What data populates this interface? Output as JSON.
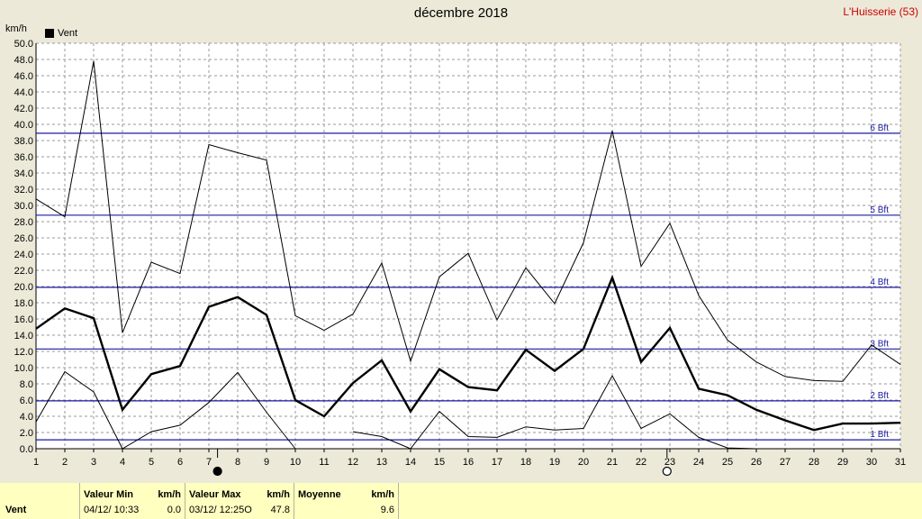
{
  "title": "décembre 2018",
  "location": "L'Huisserie (53)",
  "unit_label": "km/h",
  "legend": {
    "label": "Vent",
    "color": "#000000"
  },
  "chart_data": {
    "type": "line",
    "title": "décembre 2018",
    "ylabel": "km/h",
    "xlabel": "",
    "ylim": [
      0,
      50
    ],
    "y_tick_step": 2,
    "x": [
      1,
      2,
      3,
      4,
      5,
      6,
      7,
      8,
      9,
      10,
      11,
      12,
      13,
      14,
      15,
      16,
      17,
      18,
      19,
      20,
      21,
      22,
      23,
      24,
      25,
      26,
      27,
      28,
      29,
      30,
      31
    ],
    "grid": true,
    "legend_position": "top-left",
    "series": [
      {
        "name": "Vent",
        "role": "max",
        "values": [
          30.8,
          28.6,
          47.8,
          14.3,
          23.0,
          21.6,
          37.5,
          36.5,
          35.6,
          16.4,
          14.6,
          16.6,
          22.9,
          10.8,
          21.2,
          24.1,
          15.9,
          22.3,
          17.9,
          25.4,
          39.2,
          22.5,
          27.8,
          18.9,
          13.4,
          10.7,
          8.9,
          8.4,
          8.3,
          12.8,
          10.4
        ]
      },
      {
        "name": "Vent",
        "role": "mean",
        "values": [
          14.8,
          17.3,
          16.1,
          4.8,
          9.2,
          10.2,
          17.5,
          18.7,
          16.5,
          6.0,
          4.0,
          8.1,
          10.9,
          4.6,
          9.8,
          7.6,
          7.2,
          12.2,
          9.6,
          12.3,
          21.1,
          10.7,
          14.9,
          7.4,
          6.6,
          4.8,
          3.5,
          2.3,
          3.1,
          3.1,
          3.2
        ]
      },
      {
        "name": "Vent",
        "role": "min",
        "values": [
          3.3,
          9.5,
          7.0,
          0.0,
          2.1,
          2.9,
          5.7,
          9.4,
          4.5,
          0.0,
          null,
          2.1,
          1.5,
          0.0,
          4.6,
          1.5,
          1.4,
          2.7,
          2.3,
          2.5,
          9.0,
          2.5,
          4.3,
          1.4,
          0.1,
          0.0,
          null,
          null,
          null,
          null,
          null
        ]
      }
    ],
    "beaufort_lines": [
      {
        "label": "1 Bft",
        "value": 1.1
      },
      {
        "label": "2 Bft",
        "value": 5.9
      },
      {
        "label": "3 Bft",
        "value": 12.3
      },
      {
        "label": "4 Bft",
        "value": 19.9
      },
      {
        "label": "5 Bft",
        "value": 28.8
      },
      {
        "label": "6 Bft",
        "value": 38.9
      }
    ],
    "moon_phases": [
      {
        "day": 7.3,
        "phase": "new"
      },
      {
        "day": 22.9,
        "phase": "full"
      }
    ]
  },
  "footer": {
    "series": "Vent",
    "min": {
      "header": "Valeur Min",
      "unit": "km/h",
      "date": "04/12/",
      "time": "10:33",
      "value": "0.0"
    },
    "max": {
      "header": "Valeur Max",
      "unit": "km/h",
      "date": "03/12/",
      "time": "12:25",
      "dir": "O",
      "value": "47.8"
    },
    "avg": {
      "header": "Moyenne",
      "unit": "km/h",
      "value": "9.6"
    }
  }
}
